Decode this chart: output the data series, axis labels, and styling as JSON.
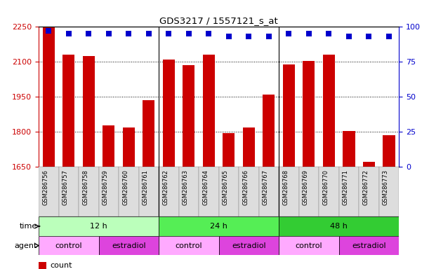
{
  "title": "GDS3217 / 1557121_s_at",
  "samples": [
    "GSM286756",
    "GSM286757",
    "GSM286758",
    "GSM286759",
    "GSM286760",
    "GSM286761",
    "GSM286762",
    "GSM286763",
    "GSM286764",
    "GSM286765",
    "GSM286766",
    "GSM286767",
    "GSM286768",
    "GSM286769",
    "GSM286770",
    "GSM286771",
    "GSM286772",
    "GSM286773"
  ],
  "counts": [
    2248,
    2130,
    2125,
    1828,
    1820,
    1935,
    2110,
    2085,
    2130,
    1795,
    1820,
    1960,
    2090,
    2105,
    2130,
    1803,
    1672,
    1785
  ],
  "percentile_ranks": [
    97,
    95,
    95,
    95,
    95,
    95,
    95,
    95,
    95,
    93,
    93,
    93,
    95,
    95,
    95,
    93,
    93,
    93
  ],
  "bar_color": "#cc0000",
  "dot_color": "#0000cc",
  "ylim_left": [
    1650,
    2250
  ],
  "ylim_right": [
    0,
    100
  ],
  "yticks_left": [
    1650,
    1800,
    1950,
    2100,
    2250
  ],
  "yticks_right": [
    0,
    25,
    50,
    75,
    100
  ],
  "left_tick_color": "#cc0000",
  "right_tick_color": "#0000cc",
  "grid_color": "#000000",
  "time_groups": [
    {
      "label": "12 h",
      "start": 0,
      "end": 6,
      "color": "#bbffbb"
    },
    {
      "label": "24 h",
      "start": 6,
      "end": 12,
      "color": "#55ee55"
    },
    {
      "label": "48 h",
      "start": 12,
      "end": 18,
      "color": "#33cc33"
    }
  ],
  "agent_groups": [
    {
      "label": "control",
      "start": 0,
      "end": 3,
      "color": "#ffaaff"
    },
    {
      "label": "estradiol",
      "start": 3,
      "end": 6,
      "color": "#dd44dd"
    },
    {
      "label": "control",
      "start": 6,
      "end": 9,
      "color": "#ffaaff"
    },
    {
      "label": "estradiol",
      "start": 9,
      "end": 12,
      "color": "#dd44dd"
    },
    {
      "label": "control",
      "start": 12,
      "end": 15,
      "color": "#ffaaff"
    },
    {
      "label": "estradiol",
      "start": 15,
      "end": 18,
      "color": "#dd44dd"
    }
  ],
  "legend_count_color": "#cc0000",
  "legend_dot_color": "#0000cc",
  "group_boundaries": [
    6,
    12
  ],
  "agent_boundaries": [
    3,
    6,
    9,
    12,
    15
  ]
}
